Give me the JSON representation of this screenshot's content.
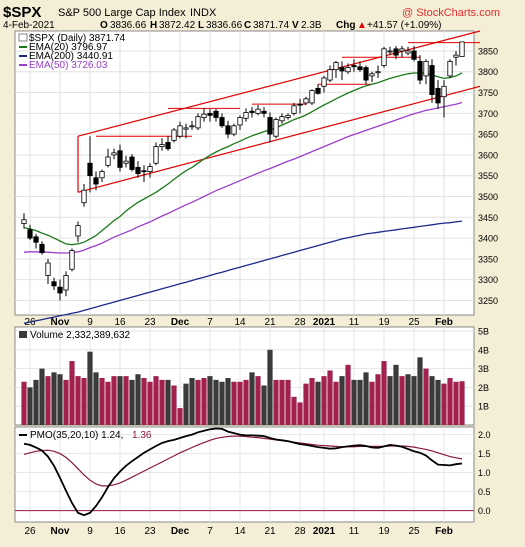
{
  "header": {
    "symbol": "$SPX",
    "name": "S&P 500 Large Cap Index",
    "exchange": "INDX",
    "watermark": "@ StockCharts.com",
    "date": "4-Feb-2021",
    "quote_open_label": "O",
    "quote_open": "3836.66",
    "quote_high_label": "H",
    "quote_high": "3872.42",
    "quote_low_label": "L",
    "quote_low": "3836.66",
    "quote_close_label": "C",
    "quote_close": "3871.74",
    "quote_vol_label": "V",
    "quote_vol": "2.3B",
    "quote_chg_label": "Chg",
    "quote_chg": "+41.57 (+1.09%)",
    "quote_chg_arrow": "▲"
  },
  "legend": [
    {
      "label": "$SPX (Daily) 3871.74",
      "color": "#000000"
    },
    {
      "label": "EMA(20) 3796.97",
      "color": "#1a7a1a"
    },
    {
      "label": "EMA(200) 3440.91",
      "color": "#1a2a8a"
    },
    {
      "label": "EMA(50) 3726.03",
      "color": "#9b3fc9"
    }
  ],
  "volume_label": "Volume 2,332,389,632",
  "pmo_label_a": "PMO(35,20,10) 1.24,",
  "pmo_label_b": "1.36",
  "colors": {
    "up": "#ffffff",
    "down": "#000000",
    "vol_up": "#a3214f",
    "vol_down": "#3a3a3a",
    "trend": "#e00000",
    "pmo": "#000000",
    "pmo_signal": "#8b1a3a",
    "zero": "#9b1b4f"
  },
  "chart_data": [
    {
      "type": "candlestick",
      "title": "$SPX S&P 500 Large Cap Index INDX",
      "ylim": [
        3215,
        3898
      ],
      "y_ticks": [
        3250,
        3300,
        3350,
        3400,
        3450,
        3500,
        3550,
        3600,
        3650,
        3700,
        3750,
        3800,
        3850
      ],
      "x_tick_labels": [
        "26",
        "Nov",
        "9",
        "16",
        "23",
        "Dec",
        "7",
        "14",
        "21",
        "28",
        "2021",
        "11",
        "19",
        "25",
        "Feb"
      ],
      "ohlc": [
        [
          3435,
          3460,
          3423,
          3444
        ],
        [
          3420,
          3432,
          3395,
          3400
        ],
        [
          3403,
          3410,
          3375,
          3390
        ],
        [
          3385,
          3392,
          3360,
          3365
        ],
        [
          3310,
          3350,
          3290,
          3340
        ],
        [
          3295,
          3305,
          3275,
          3285
        ],
        [
          3282,
          3300,
          3250,
          3268
        ],
        [
          3275,
          3320,
          3260,
          3310
        ],
        [
          3325,
          3375,
          3320,
          3370
        ],
        [
          3405,
          3440,
          3390,
          3430
        ],
        [
          3485,
          3530,
          3475,
          3515
        ],
        [
          3580,
          3645,
          3510,
          3550
        ],
        [
          3545,
          3560,
          3515,
          3530
        ],
        [
          3545,
          3565,
          3535,
          3560
        ],
        [
          3575,
          3615,
          3570,
          3595
        ],
        [
          3600,
          3615,
          3590,
          3605
        ],
        [
          3610,
          3625,
          3560,
          3570
        ],
        [
          3580,
          3598,
          3570,
          3585
        ],
        [
          3595,
          3602,
          3560,
          3565
        ],
        [
          3570,
          3585,
          3545,
          3555
        ],
        [
          3562,
          3575,
          3535,
          3560
        ],
        [
          3560,
          3580,
          3545,
          3572
        ],
        [
          3580,
          3630,
          3575,
          3620
        ],
        [
          3620,
          3640,
          3610,
          3625
        ],
        [
          3630,
          3645,
          3610,
          3615
        ],
        [
          3635,
          3665,
          3630,
          3660
        ],
        [
          3645,
          3680,
          3640,
          3670
        ],
        [
          3662,
          3675,
          3640,
          3665
        ],
        [
          3670,
          3682,
          3660,
          3670
        ],
        [
          3665,
          3700,
          3660,
          3692
        ],
        [
          3690,
          3712,
          3680,
          3698
        ],
        [
          3700,
          3710,
          3680,
          3695
        ],
        [
          3705,
          3710,
          3680,
          3690
        ],
        [
          3690,
          3700,
          3665,
          3670
        ],
        [
          3670,
          3682,
          3640,
          3650
        ],
        [
          3650,
          3675,
          3645,
          3670
        ],
        [
          3672,
          3695,
          3660,
          3690
        ],
        [
          3688,
          3712,
          3680,
          3702
        ],
        [
          3705,
          3715,
          3690,
          3702
        ],
        [
          3700,
          3720,
          3695,
          3710
        ],
        [
          3705,
          3715,
          3690,
          3700
        ],
        [
          3690,
          3702,
          3630,
          3650
        ],
        [
          3645,
          3690,
          3640,
          3685
        ],
        [
          3682,
          3700,
          3675,
          3692
        ],
        [
          3690,
          3700,
          3685,
          3695
        ],
        [
          3700,
          3725,
          3695,
          3718
        ],
        [
          3722,
          3735,
          3700,
          3720
        ],
        [
          3725,
          3740,
          3720,
          3735
        ],
        [
          3725,
          3758,
          3720,
          3755
        ],
        [
          3760,
          3770,
          3745,
          3748
        ],
        [
          3765,
          3790,
          3750,
          3785
        ],
        [
          3780,
          3815,
          3775,
          3805
        ],
        [
          3805,
          3826,
          3785,
          3822
        ],
        [
          3810,
          3825,
          3780,
          3802
        ],
        [
          3800,
          3820,
          3795,
          3810
        ],
        [
          3815,
          3830,
          3800,
          3812
        ],
        [
          3812,
          3825,
          3800,
          3805
        ],
        [
          3810,
          3815,
          3770,
          3780
        ],
        [
          3790,
          3800,
          3775,
          3795
        ],
        [
          3800,
          3815,
          3785,
          3800
        ],
        [
          3815,
          3860,
          3810,
          3855
        ],
        [
          3850,
          3860,
          3840,
          3850
        ],
        [
          3855,
          3862,
          3830,
          3840
        ],
        [
          3850,
          3862,
          3835,
          3855
        ],
        [
          3845,
          3860,
          3840,
          3850
        ],
        [
          3850,
          3862,
          3825,
          3830
        ],
        [
          3825,
          3840,
          3770,
          3780
        ],
        [
          3790,
          3830,
          3770,
          3825
        ],
        [
          3815,
          3830,
          3725,
          3745
        ],
        [
          3760,
          3780,
          3710,
          3725
        ],
        [
          3740,
          3780,
          3690,
          3765
        ],
        [
          3790,
          3830,
          3785,
          3825
        ],
        [
          3835,
          3850,
          3815,
          3840
        ],
        [
          3836.66,
          3872.42,
          3836.66,
          3871.74
        ]
      ],
      "trendlines": [
        {
          "from": [
            9,
            3645
          ],
          "to": [
            76,
            3898
          ]
        },
        {
          "from": [
            9,
            3510
          ],
          "to": [
            76,
            3765
          ]
        }
      ],
      "resistance_levels": [
        {
          "value": 3645,
          "from": 12,
          "to": 28
        },
        {
          "value": 3712,
          "from": 24,
          "to": 36
        },
        {
          "value": 3722,
          "from": 38,
          "to": 47
        },
        {
          "value": 3770,
          "from": 49,
          "to": 58
        },
        {
          "value": 3835,
          "from": 53,
          "to": 66
        },
        {
          "value": 3870,
          "from": 64,
          "to": 76
        }
      ],
      "series": [
        {
          "name": "EMA(20) 3796.97",
          "type": "line",
          "values": [
            3425,
            3422,
            3418,
            3412,
            3407,
            3400,
            3393,
            3386,
            3384,
            3386,
            3390,
            3398,
            3406,
            3418,
            3430,
            3442,
            3452,
            3465,
            3476,
            3486,
            3494,
            3502,
            3510,
            3520,
            3530,
            3541,
            3552,
            3562,
            3570,
            3580,
            3590,
            3599,
            3607,
            3614,
            3620,
            3627,
            3633,
            3640,
            3646,
            3651,
            3656,
            3660,
            3665,
            3672,
            3678,
            3685,
            3690,
            3696,
            3704,
            3712,
            3720,
            3727,
            3735,
            3742,
            3749,
            3755,
            3761,
            3766,
            3770,
            3774,
            3779,
            3784,
            3788,
            3792,
            3795,
            3797,
            3797,
            3797,
            3792,
            3788,
            3784,
            3786,
            3790,
            3796.97
          ]
        },
        {
          "name": "EMA(50) 3726.03",
          "type": "line",
          "values": [
            3366,
            3367,
            3367,
            3366,
            3366,
            3365,
            3364,
            3364,
            3365,
            3367,
            3371,
            3377,
            3382,
            3388,
            3395,
            3402,
            3408,
            3414,
            3420,
            3427,
            3433,
            3439,
            3446,
            3453,
            3459,
            3466,
            3473,
            3480,
            3486,
            3493,
            3500,
            3507,
            3514,
            3520,
            3526,
            3532,
            3538,
            3544,
            3550,
            3556,
            3562,
            3567,
            3573,
            3579,
            3585,
            3590,
            3596,
            3602,
            3608,
            3614,
            3620,
            3626,
            3632,
            3638,
            3644,
            3649,
            3654,
            3659,
            3664,
            3669,
            3674,
            3679,
            3684,
            3689,
            3694,
            3699,
            3703,
            3707,
            3710,
            3713,
            3716,
            3719,
            3722,
            3726.03
          ]
        },
        {
          "name": "EMA(200) 3440.91",
          "type": "line",
          "values": [
            3195,
            3198,
            3201,
            3204,
            3207,
            3210,
            3213,
            3216,
            3219,
            3222,
            3226,
            3230,
            3234,
            3238,
            3242,
            3246,
            3250,
            3254,
            3258,
            3262,
            3266,
            3270,
            3274,
            3278,
            3282,
            3286,
            3290,
            3294,
            3298,
            3302,
            3306,
            3310,
            3314,
            3318,
            3322,
            3326,
            3330,
            3334,
            3338,
            3342,
            3346,
            3350,
            3354,
            3358,
            3362,
            3366,
            3370,
            3374,
            3378,
            3382,
            3386,
            3390,
            3394,
            3398,
            3401,
            3404,
            3407,
            3410,
            3412,
            3414,
            3416,
            3418,
            3420,
            3422,
            3424,
            3426,
            3428,
            3430,
            3432,
            3434,
            3436,
            3437,
            3439,
            3440.91
          ]
        }
      ]
    },
    {
      "type": "bar",
      "title": "Volume 2,332,389,632",
      "ylim": [
        0,
        5
      ],
      "y_ticks": [
        "1B",
        "2B",
        "3B",
        "4B",
        "5B"
      ],
      "values": [
        2.3,
        2.0,
        2.4,
        3.0,
        2.6,
        2.8,
        2.7,
        2.4,
        3.4,
        2.6,
        2.5,
        3.9,
        2.8,
        2.5,
        2.3,
        2.6,
        2.6,
        2.6,
        2.4,
        2.7,
        2.5,
        2.3,
        2.6,
        2.4,
        2.4,
        2.1,
        0.9,
        2.2,
        2.5,
        2.4,
        2.5,
        2.6,
        2.4,
        2.3,
        2.5,
        2.3,
        2.3,
        2.4,
        2.8,
        2.6,
        2.1,
        4.0,
        2.4,
        2.4,
        2.4,
        1.5,
        1.2,
        2.2,
        2.5,
        2.3,
        2.6,
        2.9,
        2.3,
        2.6,
        3.2,
        2.4,
        2.4,
        2.8,
        2.3,
        2.7,
        3.4,
        2.6,
        3.2,
        2.6,
        2.7,
        2.6,
        3.6,
        3.0,
        2.6,
        2.4,
        2.2,
        2.5,
        2.3,
        2.33
      ],
      "up_down": [
        1,
        0,
        0,
        0,
        1,
        0,
        0,
        1,
        1,
        1,
        1,
        0,
        0,
        1,
        1,
        1,
        0,
        1,
        0,
        0,
        1,
        1,
        1,
        1,
        0,
        1,
        1,
        0,
        0,
        1,
        1,
        0,
        0,
        0,
        0,
        1,
        1,
        1,
        0,
        1,
        0,
        0,
        1,
        1,
        1,
        1,
        1,
        1,
        1,
        0,
        1,
        1,
        1,
        0,
        1,
        0,
        0,
        0,
        1,
        1,
        1,
        0,
        0,
        1,
        0,
        0,
        0,
        1,
        0,
        0,
        1,
        1,
        1,
        1
      ]
    },
    {
      "type": "line",
      "title": "PMO(35,20,10) 1.24, 1.36",
      "ylim": [
        -0.3,
        2.2
      ],
      "y_ticks": [
        0.0,
        0.5,
        1.0,
        1.5,
        2.0
      ],
      "series": [
        {
          "name": "PMO(35,20,10) 1.24",
          "values": [
            1.76,
            1.73,
            1.66,
            1.58,
            1.42,
            1.18,
            0.86,
            0.52,
            0.2,
            -0.06,
            -0.12,
            -0.06,
            0.12,
            0.35,
            0.62,
            0.85,
            1.03,
            1.18,
            1.3,
            1.41,
            1.52,
            1.61,
            1.7,
            1.78,
            1.83,
            1.86,
            1.91,
            1.96,
            2.0,
            2.06,
            2.1,
            2.14,
            2.16,
            2.15,
            2.08,
            2.04,
            2.0,
            1.98,
            1.98,
            1.97,
            1.96,
            1.91,
            1.87,
            1.85,
            1.83,
            1.79,
            1.75,
            1.73,
            1.7,
            1.67,
            1.65,
            1.63,
            1.64,
            1.67,
            1.69,
            1.71,
            1.72,
            1.7,
            1.66,
            1.65,
            1.69,
            1.73,
            1.71,
            1.68,
            1.62,
            1.56,
            1.52,
            1.45,
            1.32,
            1.21,
            1.2,
            1.19,
            1.22,
            1.24
          ]
        },
        {
          "name": "1.36",
          "values": [
            1.48,
            1.52,
            1.56,
            1.58,
            1.59,
            1.56,
            1.5,
            1.4,
            1.26,
            1.1,
            0.94,
            0.8,
            0.7,
            0.65,
            0.65,
            0.68,
            0.73,
            0.8,
            0.88,
            0.96,
            1.04,
            1.12,
            1.2,
            1.28,
            1.36,
            1.44,
            1.52,
            1.59,
            1.66,
            1.73,
            1.79,
            1.85,
            1.9,
            1.93,
            1.95,
            1.96,
            1.96,
            1.95,
            1.93,
            1.92,
            1.9,
            1.88,
            1.86,
            1.84,
            1.82,
            1.8,
            1.78,
            1.76,
            1.74,
            1.72,
            1.71,
            1.7,
            1.69,
            1.68,
            1.68,
            1.68,
            1.69,
            1.69,
            1.69,
            1.69,
            1.69,
            1.7,
            1.7,
            1.7,
            1.69,
            1.67,
            1.64,
            1.61,
            1.57,
            1.52,
            1.47,
            1.42,
            1.39,
            1.36
          ]
        }
      ]
    }
  ]
}
